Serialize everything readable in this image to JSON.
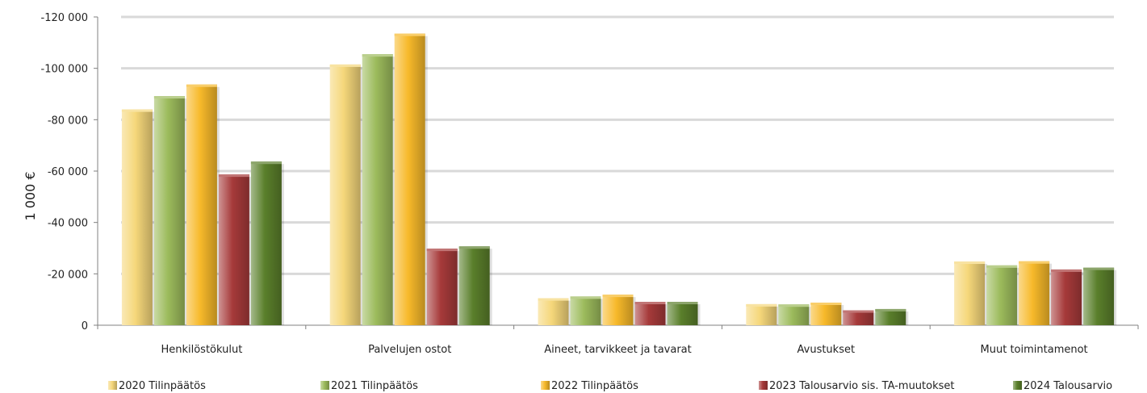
{
  "chart_data": {
    "type": "bar",
    "title": "",
    "xlabel": "",
    "ylabel": "1 000 €",
    "ylim": [
      0,
      -120000
    ],
    "y_ticks": [
      "0",
      "-20 000",
      "-40 000",
      "-60 000",
      "-80 000",
      "-100 000",
      "-120 000"
    ],
    "y_tick_values": [
      0,
      -20000,
      -40000,
      -60000,
      -80000,
      -100000,
      -120000
    ],
    "grid": true,
    "legend_position": "bottom",
    "categories": [
      "Henkilöstökulut",
      "Palvelujen ostot",
      "Aineet, tarvikkeet ja tavarat",
      "Avustukset",
      "Muut toimintamenot"
    ],
    "series": [
      {
        "name": "2020 Tilinpäätös",
        "color": "#f5d77a",
        "values": [
          -84000,
          -101500,
          -10500,
          -8200,
          -24800
        ]
      },
      {
        "name": "2021 Tilinpäätös",
        "color": "#9cbb5c",
        "values": [
          -89200,
          -105500,
          -11200,
          -8100,
          -23300
        ]
      },
      {
        "name": "2022 Tilinpäätös",
        "color": "#f7b92a",
        "values": [
          -93700,
          -113500,
          -11900,
          -8800,
          -24900
        ]
      },
      {
        "name": "2023 Talousarvio sis. TA-muutokset",
        "color": "#a63a3a",
        "values": [
          -58700,
          -29800,
          -9100,
          -5800,
          -21700
        ]
      },
      {
        "name": "2024 Talousarvio",
        "color": "#5a7f2b",
        "values": [
          -63700,
          -30700,
          -9100,
          -6300,
          -22400
        ]
      }
    ]
  }
}
